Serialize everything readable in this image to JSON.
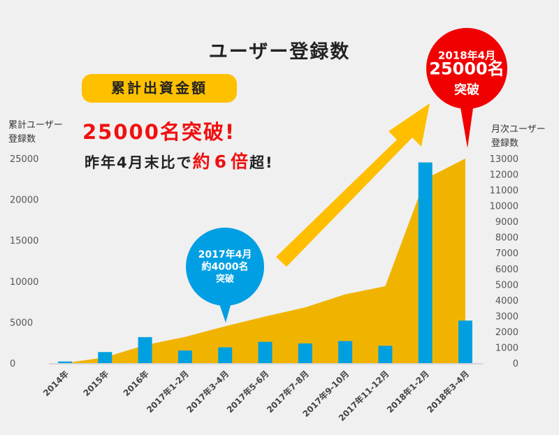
{
  "chart_data": {
    "type": "bar+area",
    "title": "ユーザー登録数",
    "categories": [
      "2014年",
      "2015年",
      "2016年",
      "2017年1-2月",
      "2017年3-4月",
      "2017年5-6月",
      "2017年7-8月",
      "2017年9-10月",
      "2017年11-12月",
      "2018年1-2月",
      "2018年3-4月"
    ],
    "series": [
      {
        "name": "累計ユーザー登録数",
        "type": "area",
        "axis": "left",
        "color": "#f0b400",
        "values": [
          0,
          700,
          2200,
          3200,
          4500,
          5700,
          6800,
          8400,
          9400,
          22500,
          25000
        ]
      },
      {
        "name": "月次ユーザー登録数",
        "type": "bar",
        "axis": "right",
        "color": "#00a0e0",
        "values": [
          100,
          700,
          1650,
          800,
          1000,
          1350,
          1250,
          1400,
          1100,
          12750,
          2700
        ]
      }
    ],
    "left_axis": {
      "label": [
        "累計ユーザー",
        "登録数"
      ],
      "ylim": [
        0,
        25000
      ],
      "ticks": [
        "0",
        "5000",
        "10000",
        "15000",
        "20000",
        "25000"
      ]
    },
    "right_axis": {
      "label": [
        "月次ユーザー",
        "登録数"
      ],
      "ylim": [
        0,
        13000
      ],
      "ticks": [
        "0",
        "1000",
        "2000",
        "3000",
        "4000",
        "5000",
        "6000",
        "7000",
        "8000",
        "9000",
        "10000",
        "11000",
        "12000",
        "13000"
      ]
    },
    "grid": false,
    "annotations": {
      "pill": "累計出資金額",
      "headline": "25000名突破!",
      "sub_prefix": "昨年4月末比で",
      "sub_red1": "約",
      "sub_red2": "6",
      "sub_red3": "倍",
      "sub_suffix": "超!",
      "blue_bubble": {
        "lines": [
          "2017年4月",
          "約4000名",
          "突破"
        ],
        "color": "#009fe3",
        "category": "2017年3-4月"
      },
      "red_bubble": {
        "lines": [
          "2018年4月",
          "25000名",
          "突破"
        ],
        "color": "#f00000",
        "category": "2018年3-4月"
      }
    },
    "arrow_color": "#ffbe00"
  }
}
